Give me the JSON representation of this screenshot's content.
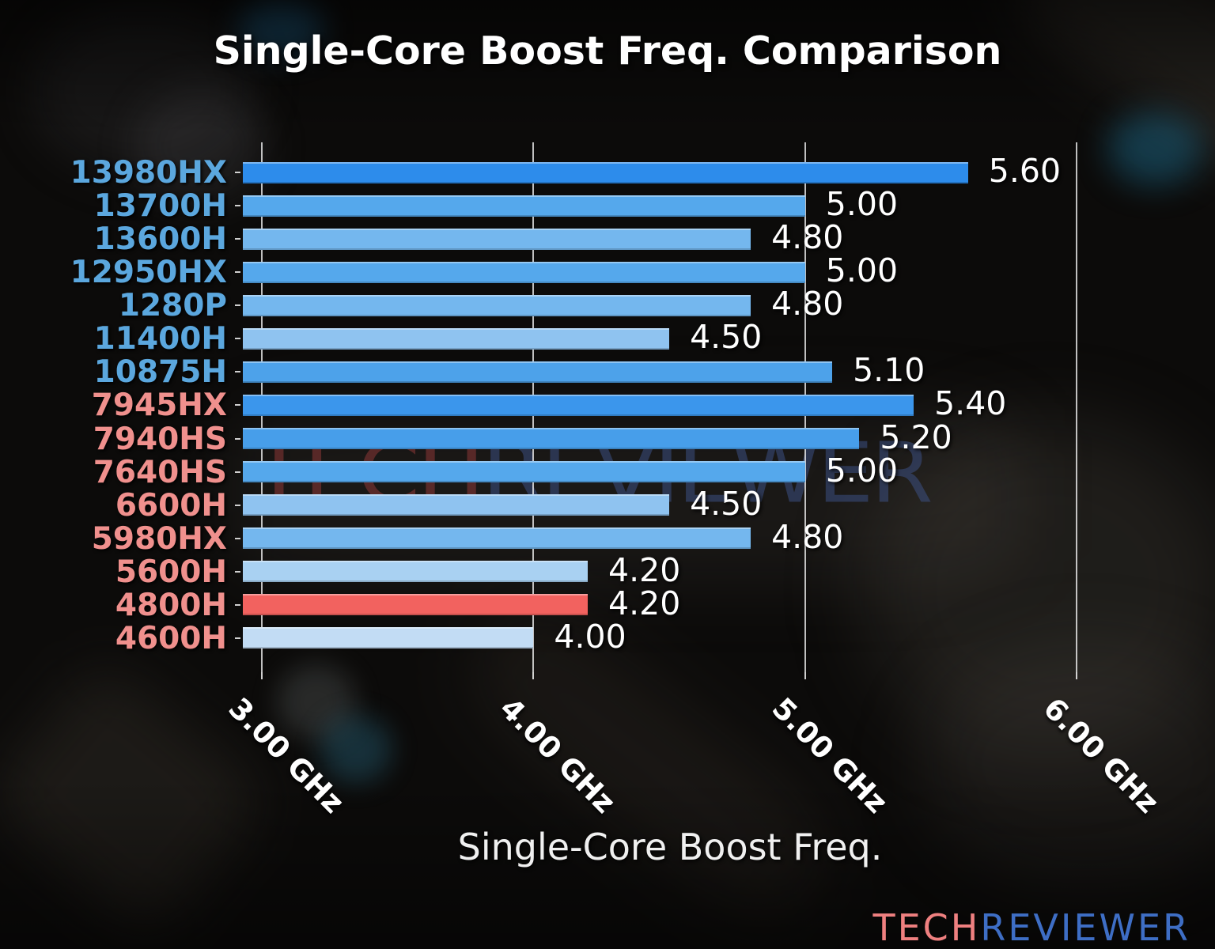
{
  "title": "Single-Core Boost Freq. Comparison",
  "watermark": {
    "tech": "TECH",
    "reviewer": "REVIEWER"
  },
  "logo": {
    "tech": "TECH",
    "reviewer": "REVIEWER"
  },
  "colors": {
    "intel_label": "#5ba7de",
    "amd_label": "#f0908d",
    "grid_line": "#eeeeee",
    "value_text": "#ffffff",
    "logo_tech": "#ef8080",
    "logo_reviewer": "#3e6ec5",
    "highlight_bar": "#f2625f"
  },
  "chart_data": {
    "type": "bar",
    "orientation": "horizontal",
    "title": "Single-Core Boost Freq. Comparison",
    "xlabel": "Single-Core Boost Freq.",
    "ylabel": "",
    "grid": true,
    "legend": null,
    "xlim": [
      2.93,
      6.39
    ],
    "categories": [
      "13980HX",
      "13700H",
      "13600H",
      "12950HX",
      "1280P",
      "11400H",
      "10875H",
      "7945HX",
      "7940HS",
      "7640HS",
      "6600H",
      "5980HX",
      "5600H",
      "4800H",
      "4600H"
    ],
    "values": [
      5.6,
      5.0,
      4.8,
      5.0,
      4.8,
      4.5,
      5.1,
      5.4,
      5.2,
      5.0,
      4.5,
      4.8,
      4.2,
      4.2,
      4.0
    ],
    "value_labels": [
      "5.60",
      "5.00",
      "4.80",
      "5.00",
      "4.80",
      "4.50",
      "5.10",
      "5.40",
      "5.20",
      "5.00",
      "4.50",
      "4.80",
      "4.20",
      "4.20",
      "4.00"
    ],
    "unit": "GHz",
    "category_brands": [
      "intel",
      "intel",
      "intel",
      "intel",
      "intel",
      "intel",
      "intel",
      "amd",
      "amd",
      "amd",
      "amd",
      "amd",
      "amd",
      "amd",
      "amd"
    ],
    "bar_colors": [
      "#2d8ceb",
      "#55a8ec",
      "#74b7ee",
      "#55a8ec",
      "#74b7ee",
      "#8fc3f0",
      "#4da2ea",
      "#3b96ec",
      "#479eea",
      "#55a8ec",
      "#8fc3f0",
      "#74b7ee",
      "#a9d1f2",
      "#f2625f",
      "#c2dcf4"
    ],
    "x_ticks": [
      {
        "value": 3.0,
        "label": "3.00 GHz"
      },
      {
        "value": 4.0,
        "label": "4.00 GHz"
      },
      {
        "value": 5.0,
        "label": "5.00 GHz"
      },
      {
        "value": 6.0,
        "label": "6.00 GHz"
      }
    ]
  }
}
